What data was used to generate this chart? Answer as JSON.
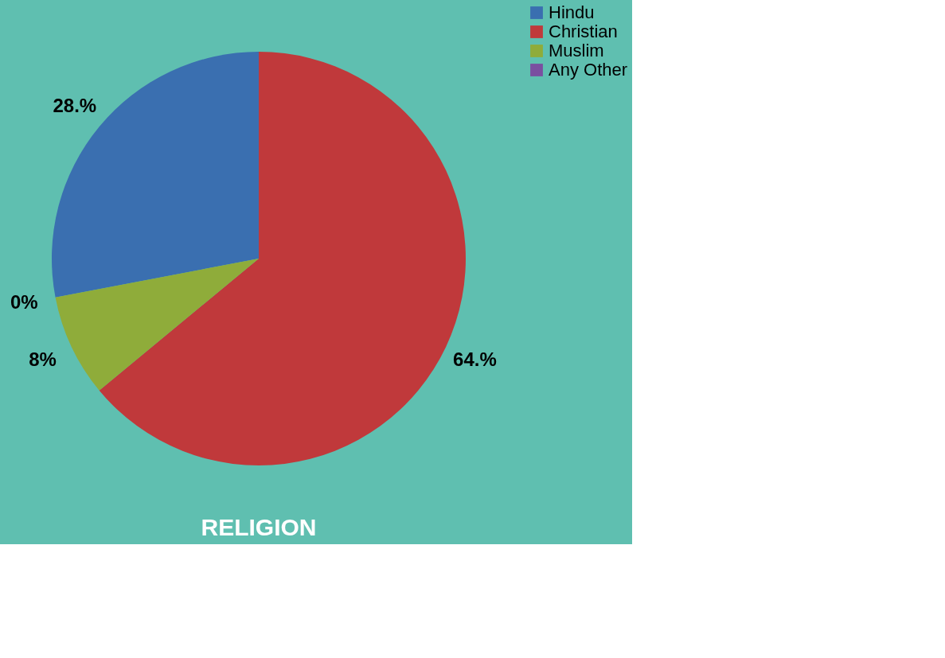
{
  "chart_data": {
    "type": "pie",
    "title": "RELIGION",
    "categories": [
      "Hindu",
      "Christian",
      "Muslim",
      "Any Other"
    ],
    "values": [
      28,
      64,
      8,
      0
    ],
    "colors": [
      "#3a6fb0",
      "#c0393b",
      "#8fac3a",
      "#7a4fa0"
    ],
    "value_labels": [
      "28.%",
      "64.%",
      "8%",
      "0%"
    ],
    "legend": "right"
  }
}
